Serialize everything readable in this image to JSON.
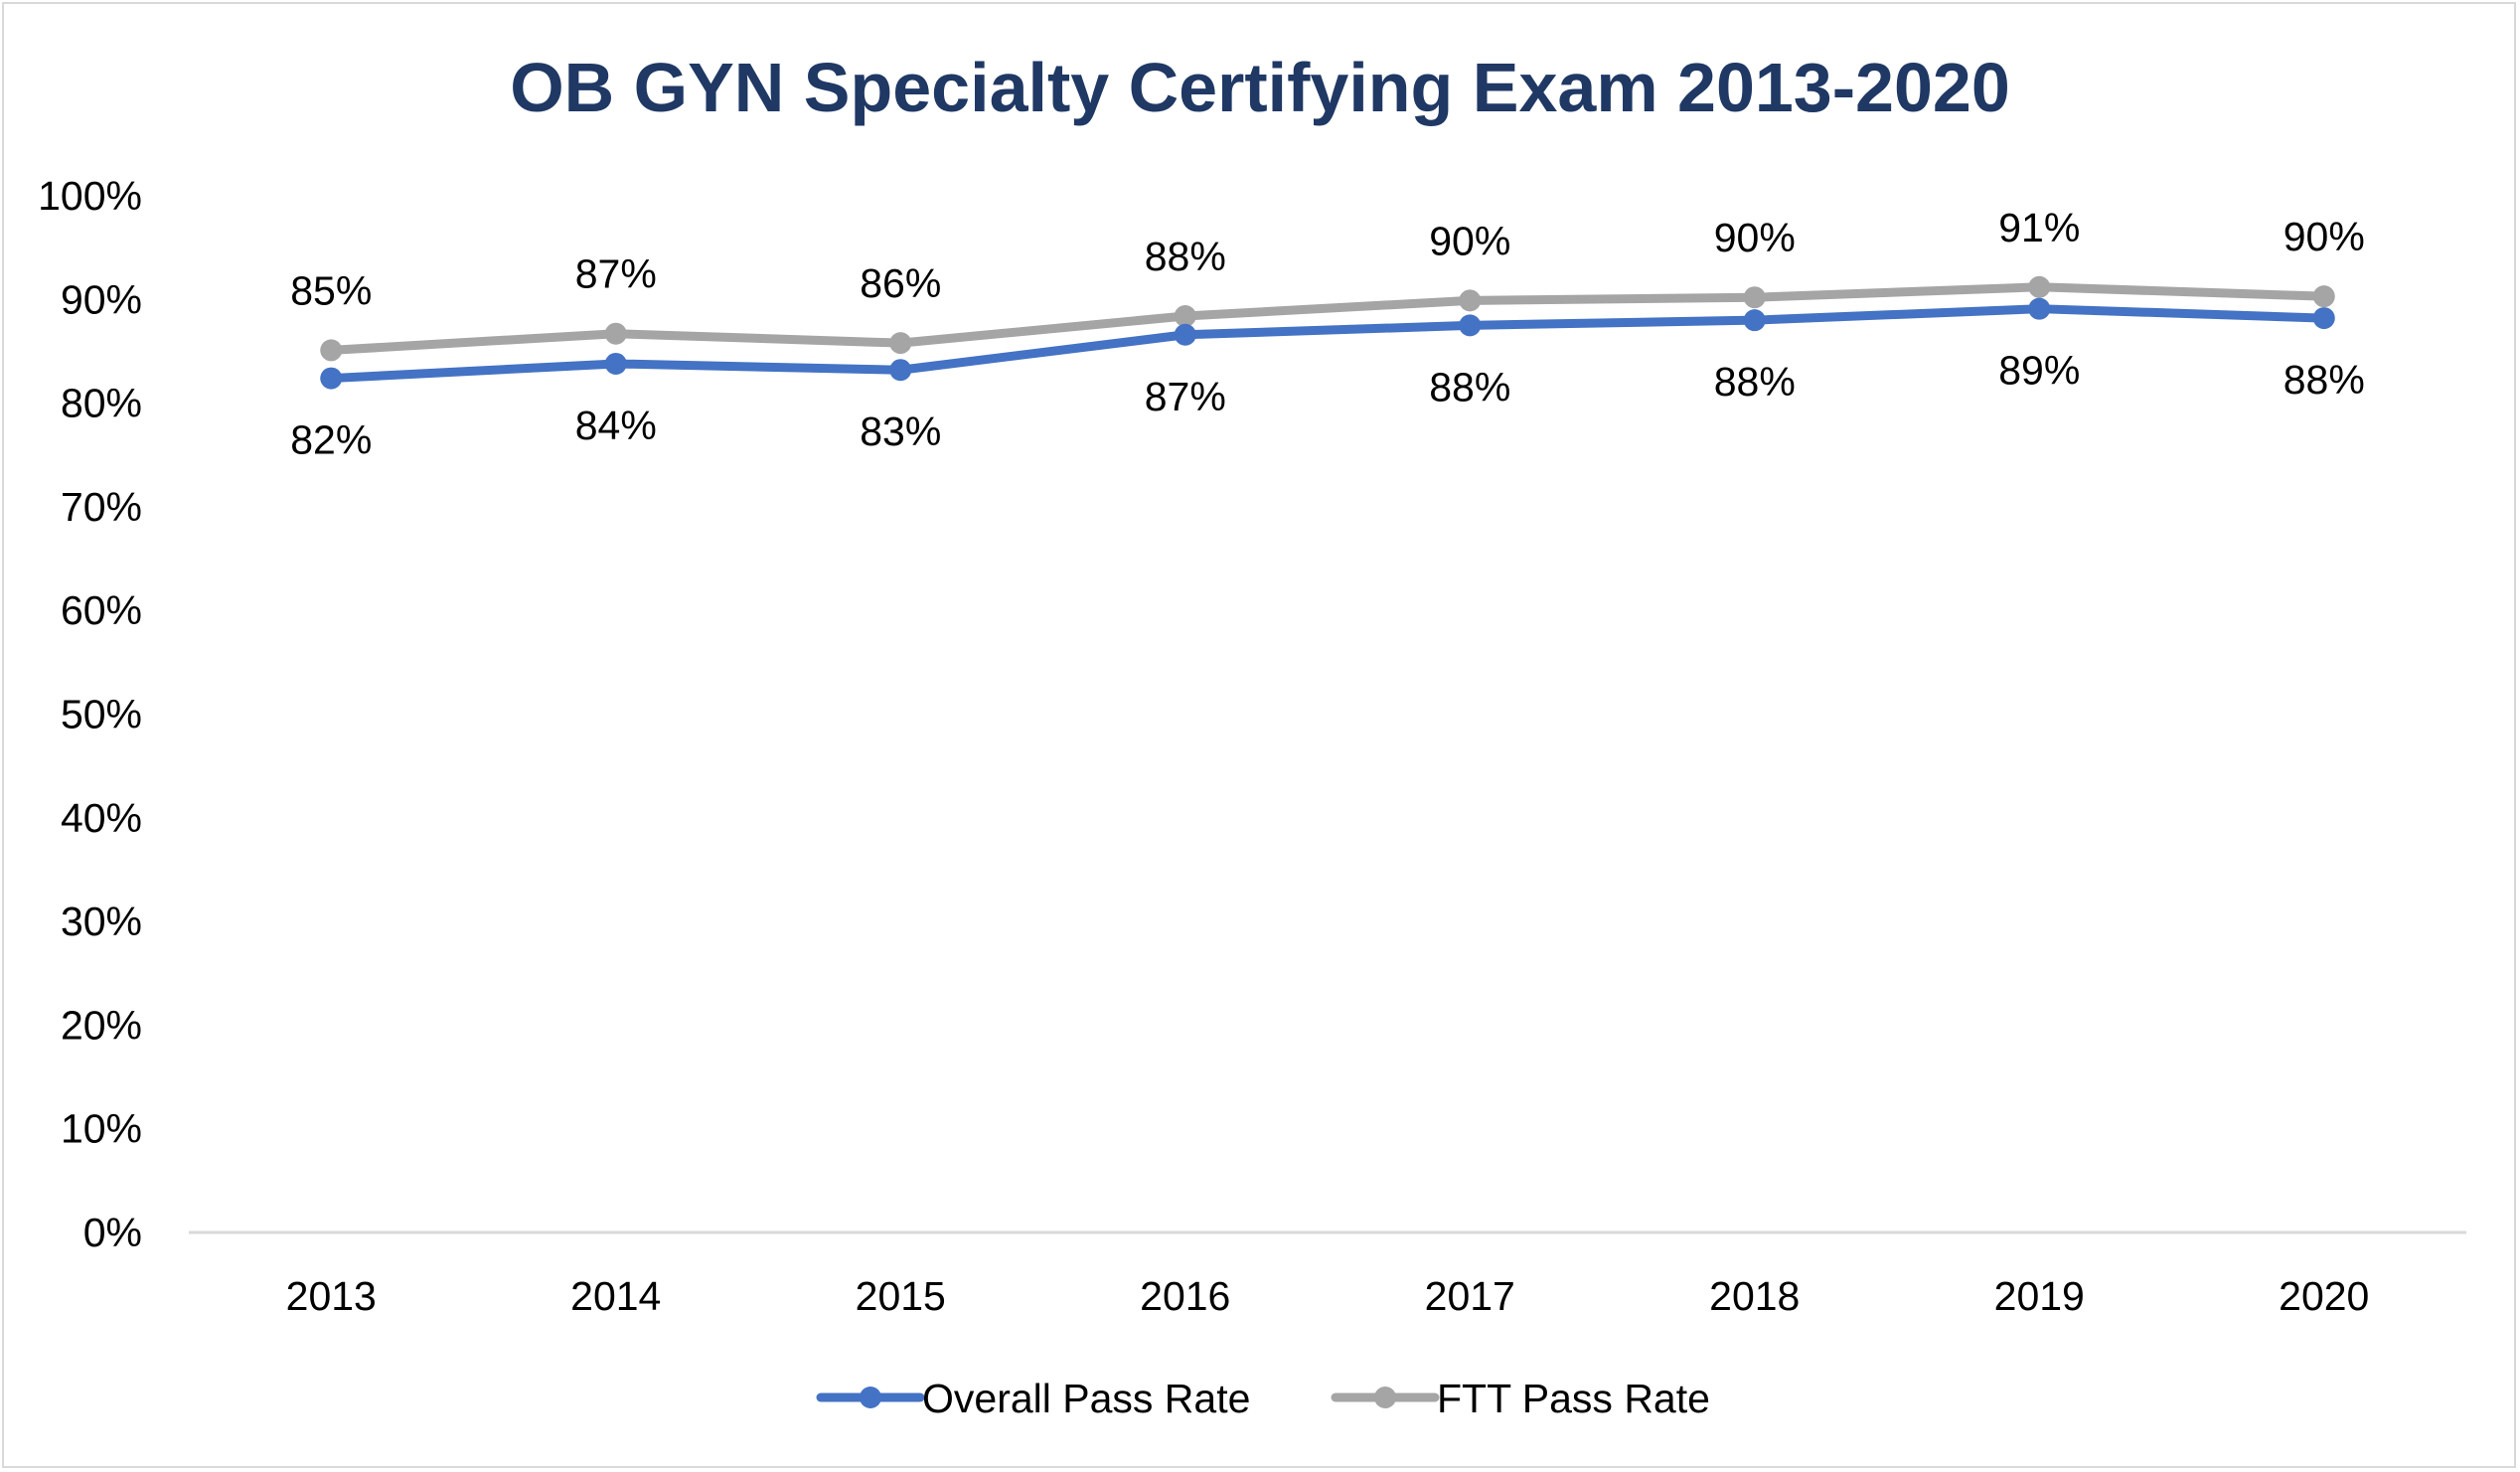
{
  "chart_data": {
    "type": "line",
    "title": "OB GYN Specialty Certifying Exam 2013-2020",
    "xlabel": "",
    "ylabel": "",
    "ylim": [
      0,
      100
    ],
    "y_ticks": [
      "0%",
      "10%",
      "20%",
      "30%",
      "40%",
      "50%",
      "60%",
      "70%",
      "80%",
      "90%",
      "100%"
    ],
    "categories": [
      "2013",
      "2014",
      "2015",
      "2016",
      "2017",
      "2018",
      "2019",
      "2020"
    ],
    "grid": false,
    "legend_position": "bottom",
    "series": [
      {
        "name": "Overall Pass Rate",
        "color": "#4472c4",
        "values": [
          82.4,
          83.8,
          83.2,
          86.6,
          87.5,
          88.0,
          89.1,
          88.2
        ],
        "labels": [
          "82%",
          "84%",
          "83%",
          "87%",
          "88%",
          "88%",
          "89%",
          "88%"
        ],
        "label_position": "below"
      },
      {
        "name": "FTT Pass Rate",
        "color": "#a5a5a5",
        "values": [
          85.1,
          86.7,
          85.8,
          88.4,
          89.9,
          90.2,
          91.2,
          90.3
        ],
        "labels": [
          "85%",
          "87%",
          "86%",
          "88%",
          "90%",
          "90%",
          "91%",
          "90%"
        ],
        "label_position": "above"
      }
    ]
  }
}
